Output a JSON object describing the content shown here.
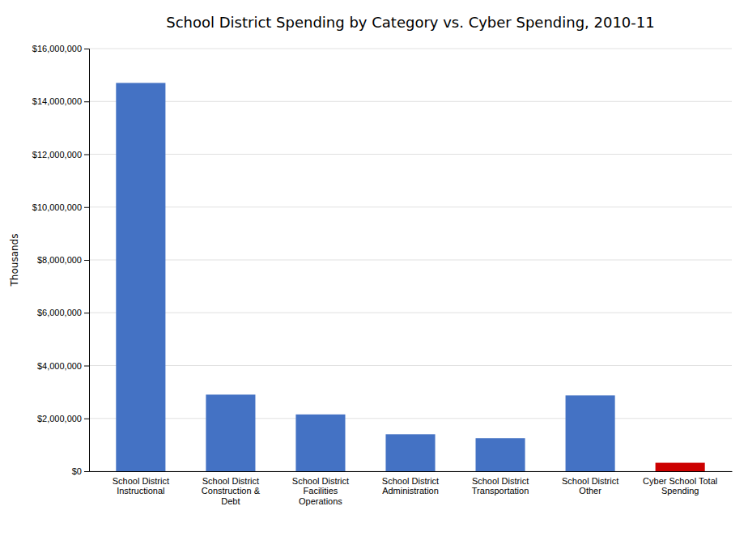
{
  "chart_data": {
    "type": "bar",
    "title": "School District Spending by Category vs. Cyber Spending, 2010-11",
    "ylabel": "Thousands",
    "categories": [
      "School District\nInstructional",
      "School District\nConstruction &\nDebt",
      "School District\nFacilities\nOperations",
      "School District\nAdministration",
      "School District\nTransportation",
      "School District\nOther",
      "Cyber School Total\nSpending"
    ],
    "values": [
      14700000,
      2900000,
      2150000,
      1400000,
      1250000,
      2870000,
      320000
    ],
    "colors": [
      "#4472C4",
      "#4472C4",
      "#4472C4",
      "#4472C4",
      "#4472C4",
      "#4472C4",
      "#CC0000"
    ],
    "ylim": [
      0,
      16000000
    ],
    "yticks": [
      {
        "value": 0,
        "label": "$0"
      },
      {
        "value": 2000000,
        "label": "$2,000,000"
      },
      {
        "value": 4000000,
        "label": "$4,000,000"
      },
      {
        "value": 6000000,
        "label": "$6,000,000"
      },
      {
        "value": 8000000,
        "label": "$8,000,000"
      },
      {
        "value": 10000000,
        "label": "$10,000,000"
      },
      {
        "value": 12000000,
        "label": "$12,000,000"
      },
      {
        "value": 14000000,
        "label": "$14,000,000"
      },
      {
        "value": 16000000,
        "label": "$16,000,000"
      }
    ],
    "grid": true
  }
}
